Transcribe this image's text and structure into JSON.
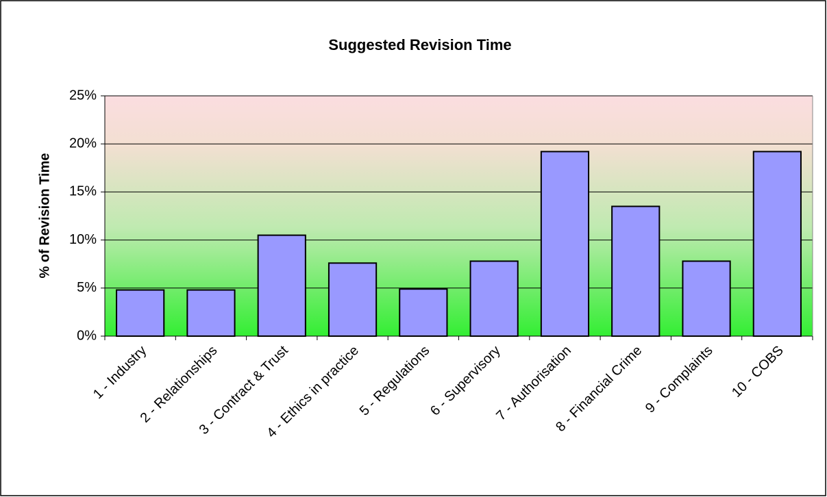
{
  "chart_data": {
    "type": "bar",
    "title": "Suggested Revision Time",
    "y_label": "% of Revision Time",
    "categories": [
      "1 - Industry",
      "2 - Relationships",
      "3 - Contract & Trust",
      "4 - Ethics in practice",
      "5 - Regulations",
      "6 - Supervisory",
      "7 - Authorisation",
      "8 - Financial Crime",
      "9 - Complaints",
      "10 - COBS"
    ],
    "values": [
      4.8,
      4.8,
      10.5,
      7.6,
      4.9,
      7.8,
      19.2,
      13.5,
      7.8,
      19.2
    ],
    "color": "#9999ff",
    "ylim": [
      0,
      25
    ],
    "yticks": [
      {
        "value": 0,
        "label": "0%"
      },
      {
        "value": 5,
        "label": "5%"
      },
      {
        "value": 10,
        "label": "10%"
      },
      {
        "value": 15,
        "label": "15%"
      },
      {
        "value": 20,
        "label": "20%"
      },
      {
        "value": 25,
        "label": "25%"
      }
    ],
    "grid": true
  }
}
